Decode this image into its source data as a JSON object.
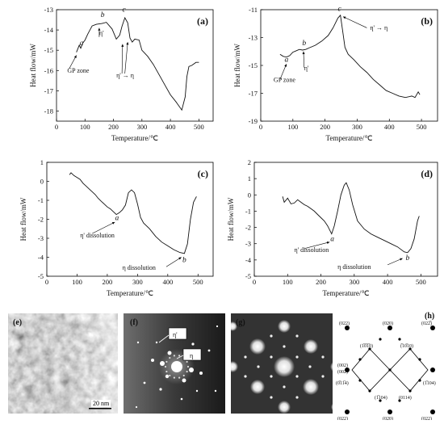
{
  "chart_data": [
    {
      "type": "line",
      "panel_label": "(a)",
      "xlabel": "Temperature/℃",
      "ylabel": "Heat flow/mW",
      "xlim": [
        0,
        550
      ],
      "ylim": [
        -18.5,
        -13
      ],
      "xticks": [
        0,
        100,
        200,
        300,
        400,
        500
      ],
      "yticks": [
        -18,
        -17,
        -16,
        -15,
        -14,
        -13
      ],
      "points": [
        [
          70,
          -15.1
        ],
        [
          80,
          -14.75
        ],
        [
          85,
          -14.9
        ],
        [
          92,
          -14.65
        ],
        [
          100,
          -14.5
        ],
        [
          110,
          -14.2
        ],
        [
          125,
          -13.8
        ],
        [
          140,
          -13.72
        ],
        [
          160,
          -13.68
        ],
        [
          175,
          -13.62
        ],
        [
          195,
          -13.95
        ],
        [
          210,
          -14.45
        ],
        [
          222,
          -14.25
        ],
        [
          230,
          -13.82
        ],
        [
          240,
          -13.4
        ],
        [
          250,
          -13.65
        ],
        [
          258,
          -14.4
        ],
        [
          266,
          -14.6
        ],
        [
          275,
          -14.45
        ],
        [
          290,
          -14.5
        ],
        [
          300,
          -15.0
        ],
        [
          320,
          -15.3
        ],
        [
          340,
          -15.7
        ],
        [
          360,
          -16.2
        ],
        [
          380,
          -16.7
        ],
        [
          400,
          -17.2
        ],
        [
          420,
          -17.55
        ],
        [
          440,
          -17.95
        ],
        [
          452,
          -17.3
        ],
        [
          458,
          -16.3
        ],
        [
          465,
          -15.8
        ],
        [
          475,
          -15.75
        ],
        [
          490,
          -15.6
        ],
        [
          500,
          -15.6
        ]
      ],
      "annotations": [
        {
          "text": "a",
          "x": 88,
          "y": -14.75
        },
        {
          "text": "b",
          "x": 162,
          "y": -13.35
        },
        {
          "text": "c",
          "x": 237,
          "y": -13.1
        },
        {
          "text": "η'",
          "x": 150,
          "y": -14.25
        },
        {
          "text": "GP zone",
          "x": 38,
          "y": -16.1
        },
        {
          "text": "η' → η",
          "x": 210,
          "y": -16.35
        }
      ]
    },
    {
      "type": "line",
      "panel_label": "(b)",
      "xlabel": "Temperature/℃",
      "ylabel": "Heat flow/mW",
      "xlim": [
        0,
        550
      ],
      "ylim": [
        -19,
        -11
      ],
      "xticks": [
        0,
        100,
        200,
        300,
        400,
        500
      ],
      "yticks": [
        -19,
        -17,
        -15,
        -13,
        -11
      ],
      "points": [
        [
          60,
          -14.2
        ],
        [
          70,
          -14.35
        ],
        [
          80,
          -14.4
        ],
        [
          90,
          -14.3
        ],
        [
          100,
          -14.05
        ],
        [
          110,
          -13.95
        ],
        [
          120,
          -13.85
        ],
        [
          130,
          -13.9
        ],
        [
          140,
          -13.85
        ],
        [
          150,
          -13.75
        ],
        [
          170,
          -13.55
        ],
        [
          190,
          -13.25
        ],
        [
          210,
          -12.85
        ],
        [
          225,
          -12.3
        ],
        [
          240,
          -11.6
        ],
        [
          248,
          -11.4
        ],
        [
          256,
          -12.7
        ],
        [
          262,
          -13.7
        ],
        [
          272,
          -14.2
        ],
        [
          290,
          -14.6
        ],
        [
          310,
          -15.1
        ],
        [
          330,
          -15.5
        ],
        [
          350,
          -16.0
        ],
        [
          370,
          -16.4
        ],
        [
          390,
          -16.8
        ],
        [
          410,
          -17.0
        ],
        [
          430,
          -17.2
        ],
        [
          450,
          -17.3
        ],
        [
          470,
          -17.2
        ],
        [
          480,
          -17.3
        ],
        [
          490,
          -16.9
        ],
        [
          495,
          -17.1
        ]
      ],
      "annotations": [
        {
          "text": "a",
          "x": 80,
          "y": -14.75
        },
        {
          "text": "b",
          "x": 135,
          "y": -13.55
        },
        {
          "text": "c",
          "x": 245,
          "y": -11.1
        },
        {
          "text": "η'",
          "x": 135,
          "y": -15.35
        },
        {
          "text": "GP zone",
          "x": 40,
          "y": -16.2
        },
        {
          "text": "η' → η",
          "x": 340,
          "y": -12.45
        }
      ]
    },
    {
      "type": "line",
      "panel_label": "(c)",
      "xlabel": "Temperature/℃",
      "ylabel": "Heat flow/mW",
      "xlim": [
        0,
        550
      ],
      "ylim": [
        -5,
        1
      ],
      "xticks": [
        0,
        100,
        200,
        300,
        400,
        500
      ],
      "yticks": [
        -5,
        -4,
        -3,
        -2,
        -1,
        0,
        1
      ],
      "points": [
        [
          75,
          0.35
        ],
        [
          80,
          0.45
        ],
        [
          90,
          0.3
        ],
        [
          100,
          0.2
        ],
        [
          110,
          0.1
        ],
        [
          120,
          -0.1
        ],
        [
          130,
          -0.25
        ],
        [
          140,
          -0.4
        ],
        [
          150,
          -0.55
        ],
        [
          160,
          -0.7
        ],
        [
          170,
          -0.9
        ],
        [
          180,
          -1.05
        ],
        [
          190,
          -1.2
        ],
        [
          200,
          -1.35
        ],
        [
          210,
          -1.45
        ],
        [
          220,
          -1.6
        ],
        [
          230,
          -1.75
        ],
        [
          240,
          -1.65
        ],
        [
          250,
          -1.5
        ],
        [
          260,
          -1.25
        ],
        [
          270,
          -0.6
        ],
        [
          280,
          -0.45
        ],
        [
          290,
          -0.6
        ],
        [
          300,
          -1.2
        ],
        [
          310,
          -1.9
        ],
        [
          320,
          -2.2
        ],
        [
          340,
          -2.5
        ],
        [
          360,
          -2.9
        ],
        [
          380,
          -3.2
        ],
        [
          400,
          -3.4
        ],
        [
          420,
          -3.6
        ],
        [
          440,
          -3.75
        ],
        [
          455,
          -3.8
        ],
        [
          465,
          -3.3
        ],
        [
          475,
          -2.0
        ],
        [
          485,
          -1.1
        ],
        [
          495,
          -0.8
        ]
      ],
      "annotations": [
        {
          "text": "a",
          "x": 232,
          "y": -2.05
        },
        {
          "text": "b",
          "x": 455,
          "y": -4.25
        },
        {
          "text": "η' dissolution",
          "x": 110,
          "y": -2.95
        },
        {
          "text": "η dissolution",
          "x": 250,
          "y": -4.65
        }
      ]
    },
    {
      "type": "line",
      "panel_label": "(d)",
      "xlabel": "Temperature/℃",
      "ylabel": "Heat flow/mW",
      "xlim": [
        0,
        550
      ],
      "ylim": [
        -5,
        2
      ],
      "xticks": [
        0,
        100,
        200,
        300,
        400,
        500
      ],
      "yticks": [
        -5,
        -4,
        -3,
        -2,
        -1,
        0,
        1,
        2
      ],
      "points": [
        [
          85,
          -0.1
        ],
        [
          90,
          -0.45
        ],
        [
          100,
          -0.2
        ],
        [
          110,
          -0.55
        ],
        [
          120,
          -0.5
        ],
        [
          130,
          -0.3
        ],
        [
          140,
          -0.45
        ],
        [
          150,
          -0.6
        ],
        [
          160,
          -0.7
        ],
        [
          170,
          -0.85
        ],
        [
          180,
          -1.0
        ],
        [
          190,
          -1.2
        ],
        [
          200,
          -1.4
        ],
        [
          210,
          -1.6
        ],
        [
          220,
          -1.9
        ],
        [
          232,
          -2.4
        ],
        [
          240,
          -1.9
        ],
        [
          250,
          -1.0
        ],
        [
          260,
          0.0
        ],
        [
          270,
          0.6
        ],
        [
          276,
          0.75
        ],
        [
          285,
          0.3
        ],
        [
          295,
          -0.6
        ],
        [
          310,
          -1.6
        ],
        [
          330,
          -2.1
        ],
        [
          350,
          -2.4
        ],
        [
          370,
          -2.6
        ],
        [
          390,
          -2.8
        ],
        [
          410,
          -3.0
        ],
        [
          430,
          -3.2
        ],
        [
          450,
          -3.5
        ],
        [
          460,
          -3.55
        ],
        [
          470,
          -3.3
        ],
        [
          480,
          -2.7
        ],
        [
          490,
          -1.6
        ],
        [
          495,
          -1.3
        ]
      ],
      "annotations": [
        {
          "text": "a",
          "x": 234,
          "y": -2.85
        },
        {
          "text": "b",
          "x": 460,
          "y": -4.0
        },
        {
          "text": "η' dissolution",
          "x": 120,
          "y": -3.5
        },
        {
          "text": "η dissolution",
          "x": 250,
          "y": -4.55
        }
      ]
    }
  ],
  "images": {
    "e": {
      "panel_label": "(e)",
      "scale_bar": "20 nm"
    },
    "f": {
      "panel_label": "(f)",
      "callouts": [
        "η'",
        "η"
      ]
    },
    "g": {
      "panel_label": "(g)"
    }
  },
  "diffraction_diagram": {
    "panel_label": "(h)",
    "labels": [
      "(022)",
      "(020)",
      "(022̅)",
      "(1̅0̅1̅0)",
      "(̅10̅10)",
      "(002)",
      "(0̅11̅4)",
      "(1̅104)",
      "(1̅104)",
      "(0114)",
      "(002)",
      "(022)",
      "(020)",
      "(022)"
    ]
  }
}
